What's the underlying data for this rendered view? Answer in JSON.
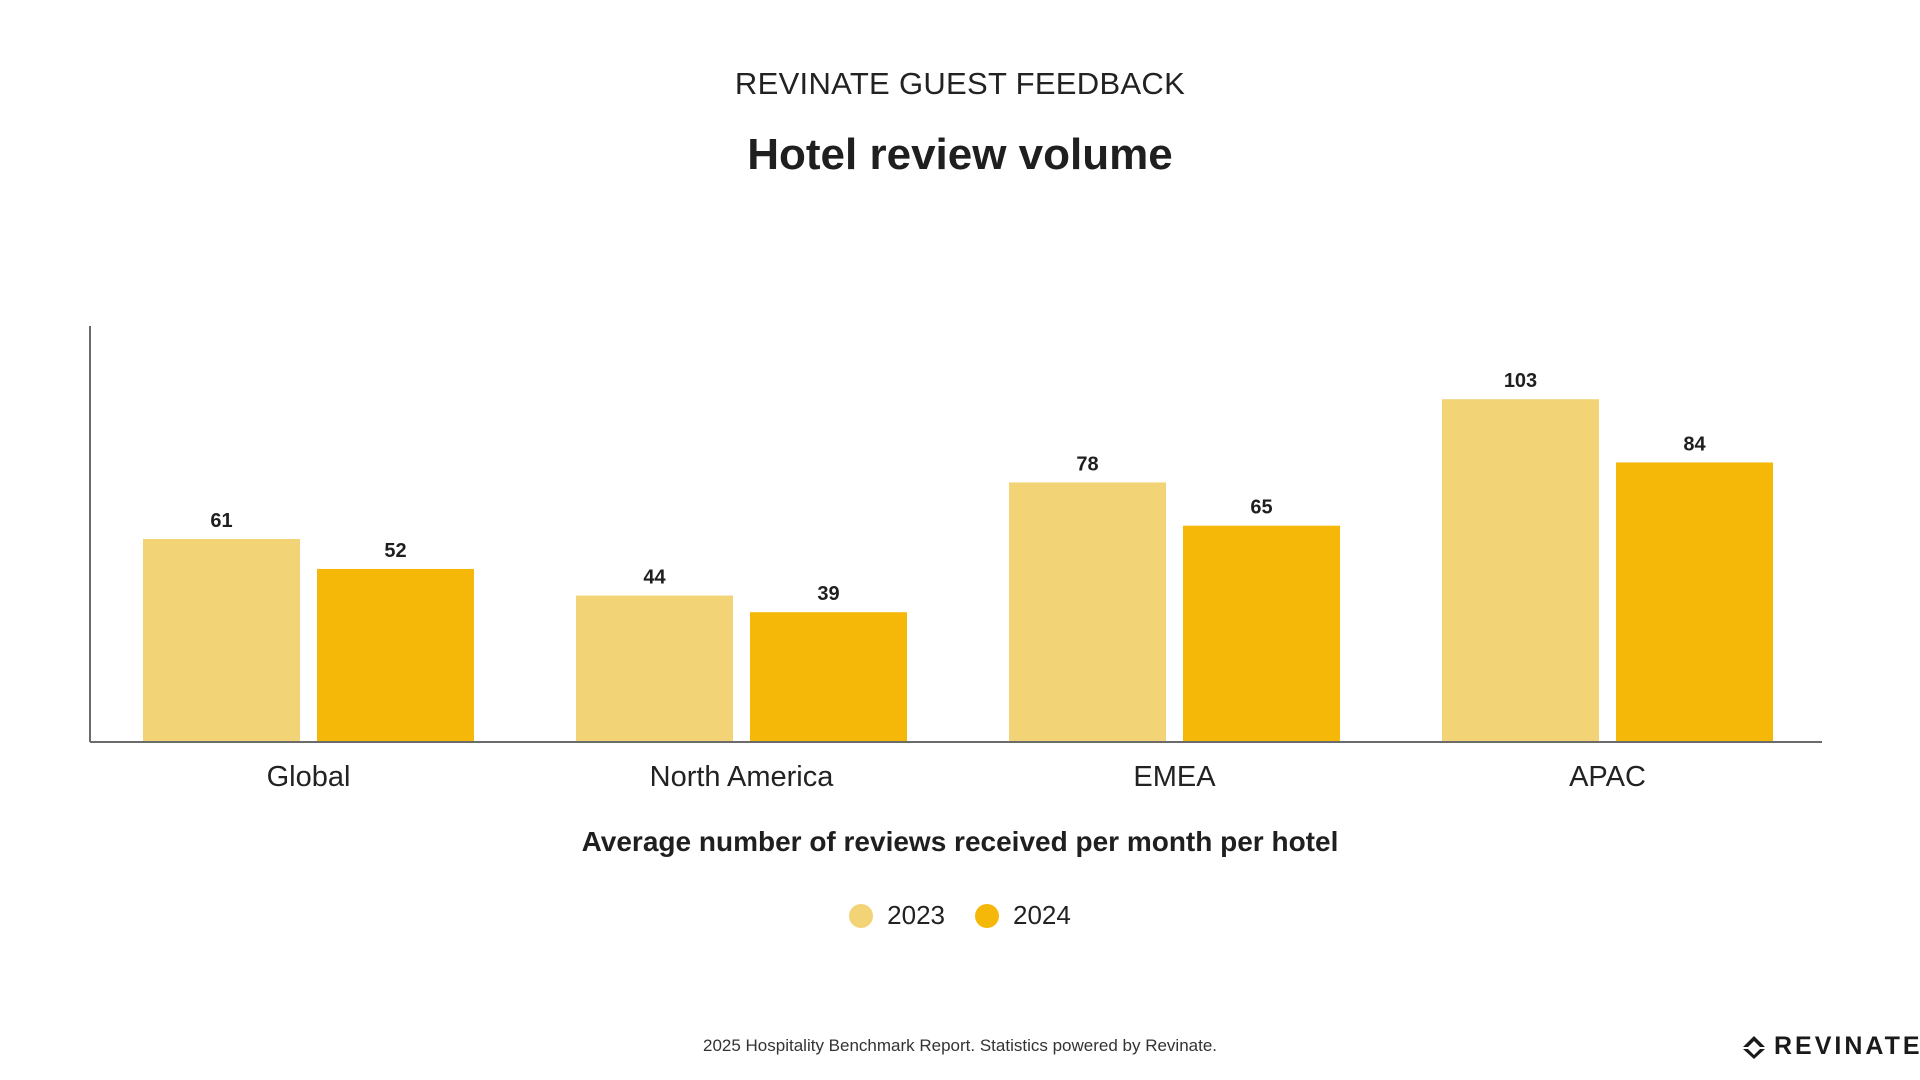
{
  "header": {
    "eyebrow": "REVINATE GUEST FEEDBACK",
    "title": "Hotel review volume"
  },
  "chart_data": {
    "type": "bar",
    "categories": [
      "Global",
      "North America",
      "EMEA",
      "APAC"
    ],
    "series": [
      {
        "name": "2023",
        "color": "#F2D375",
        "values": [
          61,
          44,
          78,
          103
        ]
      },
      {
        "name": "2024",
        "color": "#F6B808",
        "values": [
          52,
          39,
          65,
          84
        ]
      }
    ],
    "title": "Hotel review volume",
    "xlabel": "Average number of reviews received per month per hotel",
    "ylabel": "",
    "ylim": [
      0,
      125
    ],
    "grid": false,
    "legend_position": "bottom-center",
    "data_labels": true
  },
  "footer": {
    "note": "2025 Hospitality Benchmark Report. Statistics powered by Revinate.",
    "brand": "REVINATE"
  }
}
